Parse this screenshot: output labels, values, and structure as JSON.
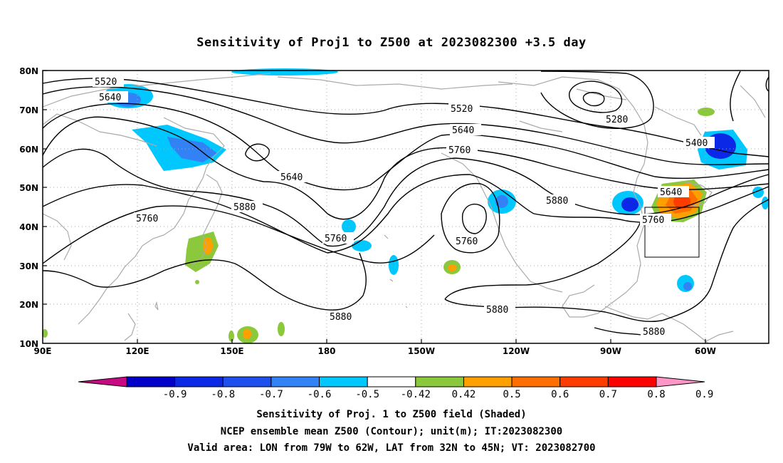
{
  "title": "Sensitivity of Proj1 to Z500 at 2023082300 +3.5 day",
  "lat_labels": [
    "80N",
    "70N",
    "60N",
    "50N",
    "40N",
    "30N",
    "20N",
    "10N"
  ],
  "lon_labels": [
    "90E",
    "120E",
    "150E",
    "180",
    "150W",
    "120W",
    "90W",
    "60W"
  ],
  "contour_labels": [
    "5520",
    "5640",
    "5520",
    "5640",
    "5760",
    "5280",
    "5400",
    "5640",
    "5640",
    "5760",
    "5880",
    "5760",
    "5880",
    "5760",
    "5760",
    "5880",
    "5880",
    "5880"
  ],
  "colorbar": {
    "ticks": [
      "-0.9",
      "-0.8",
      "-0.7",
      "-0.6",
      "-0.5",
      "-0.42",
      "0.42",
      "0.5",
      "0.6",
      "0.7",
      "0.8",
      "0.9"
    ],
    "colors": [
      "#c80a82",
      "#0000c8",
      "#0a28e6",
      "#1e50f0",
      "#3282f5",
      "#00c8ff",
      "#ffffff",
      "#8cc83c",
      "#ffa000",
      "#ff6e00",
      "#ff3c00",
      "#ff0000",
      "#ff96c8"
    ]
  },
  "captions": [
    "Sensitivity of Proj. 1 to Z500 field (Shaded)",
    "NCEP ensemble mean Z500 (Contour); unit(m); IT:2023082300",
    "Valid area: LON from 79W to 62W, LAT from 32N to 45N; VT: 2023082700"
  ],
  "colors": {
    "coastline": "#aaaaaa",
    "grid": "#aaaaaa",
    "contour": "#000000",
    "positive_green": "#8cc83c",
    "positive_orange": "#ffa000",
    "positive_red": "#ff3c00",
    "negative_cyan": "#00c8ff",
    "negative_blue": "#1e50f0",
    "negative_dark": "#0a28e6"
  }
}
